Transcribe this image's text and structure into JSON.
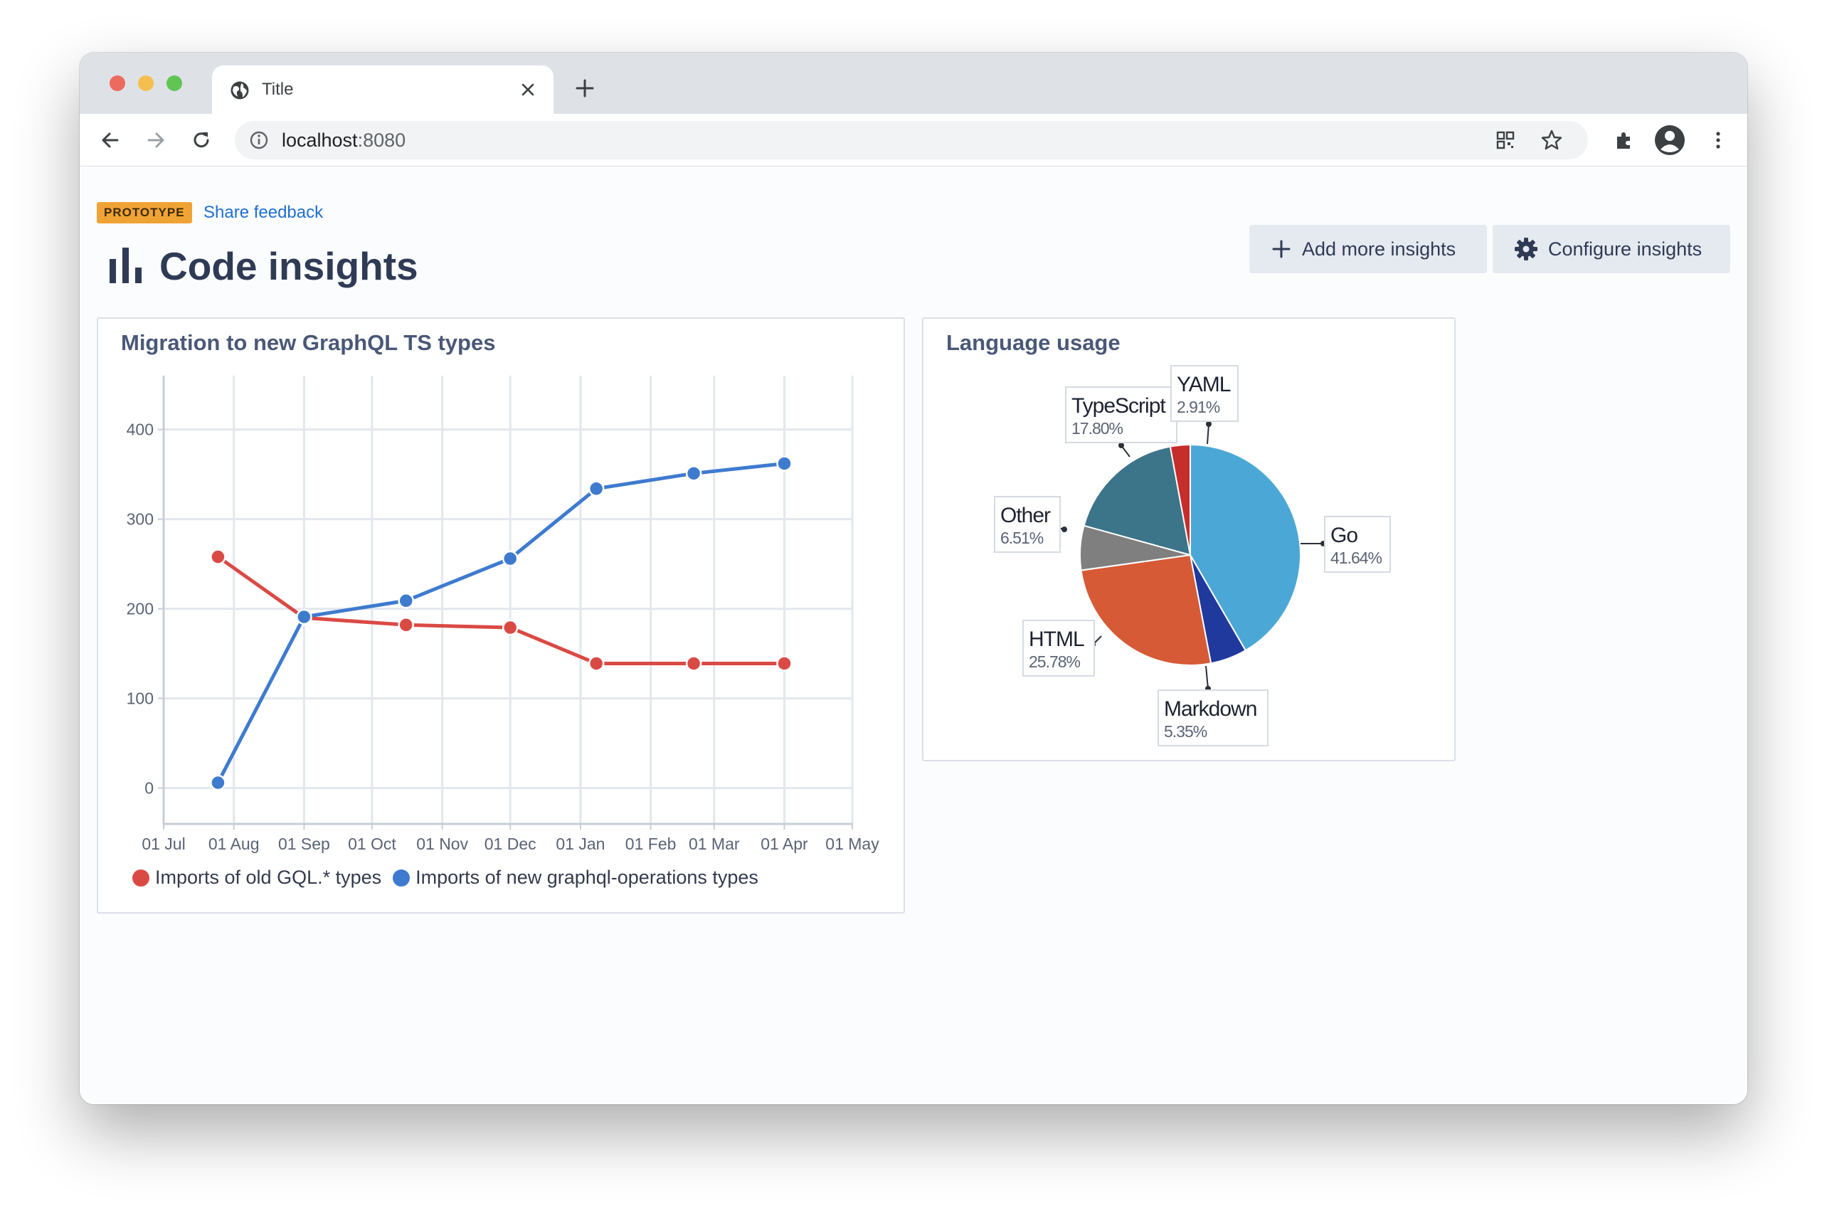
{
  "browser": {
    "tab_title": "Title",
    "url_host": "localhost",
    "url_port": ":8080"
  },
  "page": {
    "badge": "PROTOTYPE",
    "feedback_link": "Share feedback",
    "title": "Code insights",
    "add_button": "Add more insights",
    "configure_button": "Configure insights"
  },
  "cards": [
    {
      "title": "Migration to new GraphQL TS types"
    },
    {
      "title": "Language usage"
    }
  ],
  "chart_data": [
    {
      "type": "line",
      "title": "Migration to new GraphQL TS types",
      "xlabel": "",
      "ylabel": "",
      "ylim": [
        -40,
        460
      ],
      "yticks": [
        0,
        100,
        200,
        300,
        400
      ],
      "x_ticks": [
        "01 Jul",
        "01 Aug",
        "01 Sep",
        "01 Oct",
        "01 Nov",
        "01 Dec",
        "01 Jan",
        "01 Feb",
        "01 Mar",
        "01 Apr",
        "01 May"
      ],
      "xlim": [
        "2020-07-01",
        "2021-05-01"
      ],
      "grid": true,
      "legend": "bottom-left",
      "x": [
        "2020-07-25",
        "2020-09-01",
        "2020-10-16",
        "2020-12-01",
        "2021-01-08",
        "2021-02-20",
        "2021-04-01"
      ],
      "series": [
        {
          "name": "Imports of old GQL.* types",
          "color": "#da4a45",
          "values": [
            258,
            190,
            182,
            179,
            139,
            139,
            139
          ]
        },
        {
          "name": "Imports of new graphql-operations types",
          "color": "#3e7bcf",
          "values": [
            6,
            191,
            209,
            256,
            334,
            351,
            362
          ]
        }
      ]
    },
    {
      "type": "pie",
      "title": "Language usage",
      "slices": [
        {
          "label": "Go",
          "value": 41.64,
          "percent": "41.64%",
          "color": "#4ba8d6"
        },
        {
          "label": "Markdown",
          "value": 5.35,
          "percent": "5.35%",
          "color": "#20399c"
        },
        {
          "label": "HTML",
          "value": 25.78,
          "percent": "25.78%",
          "color": "#d55a35"
        },
        {
          "label": "Other",
          "value": 6.51,
          "percent": "6.51%",
          "color": "#7f7f7f"
        },
        {
          "label": "TypeScript",
          "value": 17.8,
          "percent": "17.80%",
          "color": "#3c7489"
        },
        {
          "label": "YAML",
          "value": 2.91,
          "percent": "2.91%",
          "color": "#c52e2b"
        }
      ]
    }
  ]
}
